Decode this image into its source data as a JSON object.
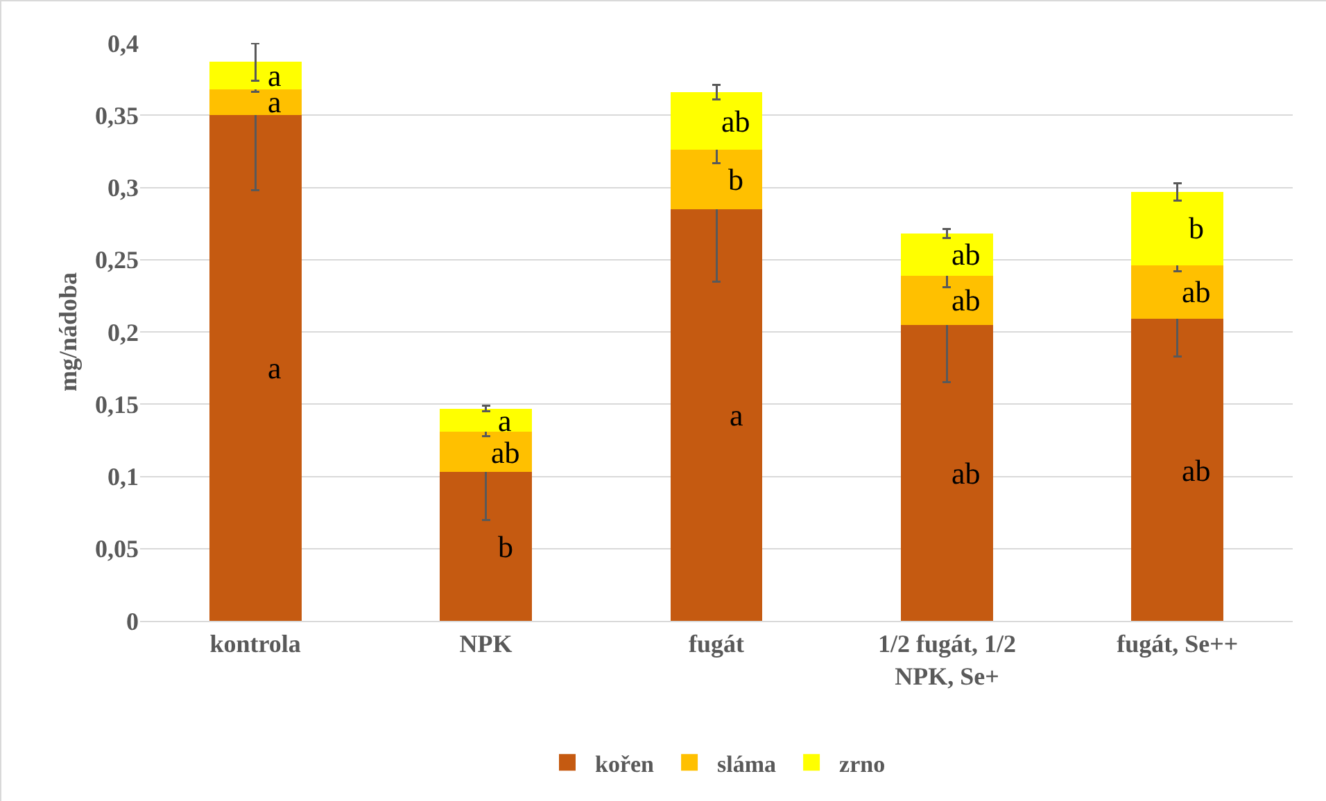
{
  "chart_data": {
    "type": "bar",
    "stacked": true,
    "ylabel": "mg/nádoba",
    "categories": [
      "kontrola",
      "NPK",
      "fugát",
      "1/2 fugát, 1/2 NPK, Se+",
      "fugát, Se++"
    ],
    "series": [
      {
        "name": "kořen",
        "color": "#c55a11",
        "values": [
          0.35,
          0.103,
          0.285,
          0.205,
          0.209
        ],
        "errors": [
          0.052,
          0.033,
          0.05,
          0.04,
          0.026
        ],
        "value_labels": [
          "a",
          "b",
          "a",
          "ab",
          "ab"
        ]
      },
      {
        "name": "sláma",
        "color": "#ffc000",
        "values": [
          0.018,
          0.028,
          0.041,
          0.034,
          0.037
        ],
        "errors": [
          0.002,
          0.003,
          0.009,
          0.008,
          0.004
        ],
        "value_labels": [
          "a",
          "ab",
          "b",
          "ab",
          "ab"
        ]
      },
      {
        "name": "zrno",
        "color": "#ffff00",
        "values": [
          0.019,
          0.016,
          0.04,
          0.029,
          0.051
        ],
        "errors": [
          0.013,
          0.002,
          0.005,
          0.003,
          0.006
        ],
        "value_labels": [
          "a",
          "a",
          "ab",
          "ab",
          "b"
        ]
      }
    ],
    "ylim": [
      0,
      0.4
    ],
    "yticks": [
      0,
      {
        "value": 0.05,
        "label": "0,05"
      },
      {
        "value": 0.1,
        "label": "0,1"
      },
      {
        "value": 0.15,
        "label": "0,15"
      },
      {
        "value": 0.2,
        "label": "0,2"
      },
      {
        "value": 0.25,
        "label": "0,25"
      },
      {
        "value": 0.3,
        "label": "0,3"
      },
      {
        "value": 0.35,
        "label": "0,35"
      },
      {
        "value": 0.4,
        "label": "0,4"
      }
    ],
    "grid": "y",
    "legend": "bottom"
  }
}
